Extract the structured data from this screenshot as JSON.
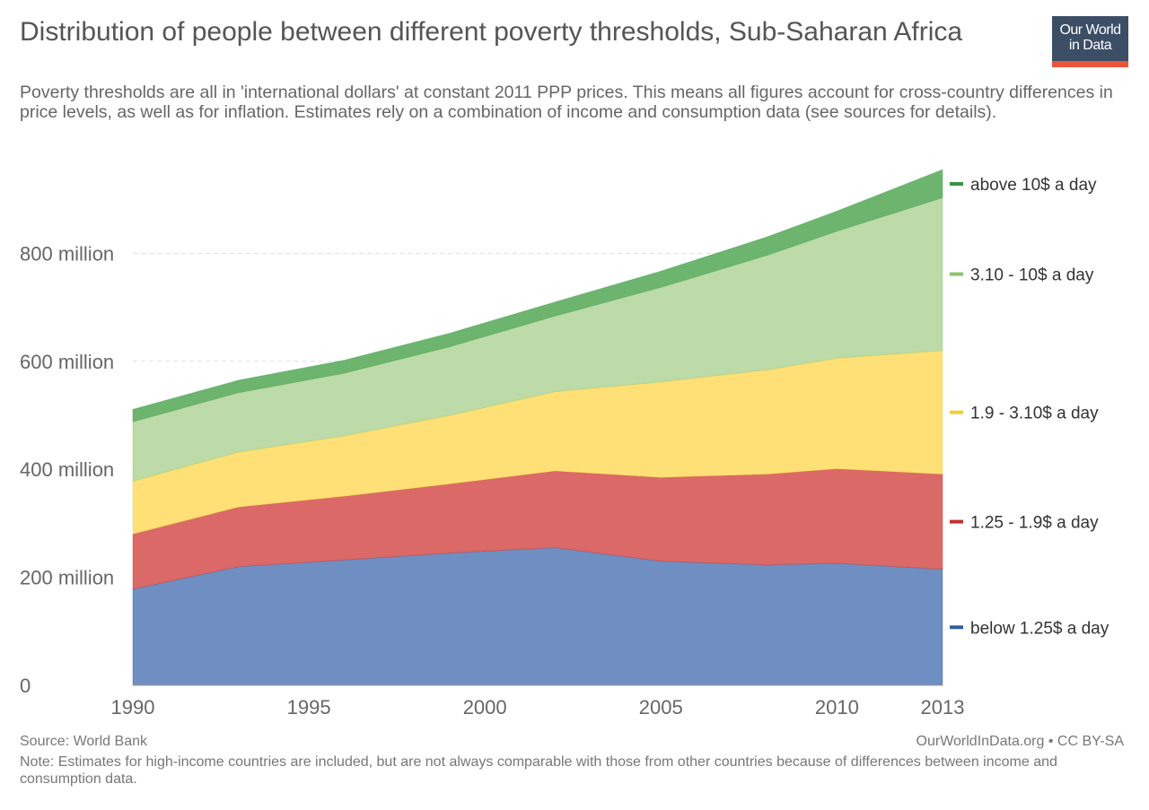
{
  "title": "Distribution of people between different poverty thresholds, Sub-Saharan Africa",
  "subtitle": "Poverty thresholds are all in 'international dollars' at constant 2011 PPP prices. This means all figures account for cross-country differences in price levels, as well as for inflation. Estimates rely on a combination of income and consumption data (see sources for details).",
  "logo": {
    "line1": "Our World",
    "line2": "in Data",
    "bg_color": "#3c4e66",
    "accent_color": "#e8553a"
  },
  "footer": {
    "source": "Source: World Bank",
    "credit": "OurWorldInData.org • CC BY-SA",
    "note": "Note: Estimates for high-income countries are included, but are not always comparable with those from other countries because of differences between income and consumption data."
  },
  "chart_data": {
    "type": "area",
    "stacked": true,
    "x": [
      1990,
      1993,
      1996,
      1999,
      2002,
      2005,
      2008,
      2010,
      2013
    ],
    "xticks": [
      1990,
      1995,
      2000,
      2005,
      2010,
      2013
    ],
    "ylim": [
      0,
      1000000000
    ],
    "yticks": [
      {
        "value": 0,
        "label": "0"
      },
      {
        "value": 200000000,
        "label": "200 million"
      },
      {
        "value": 400000000,
        "label": "400 million"
      },
      {
        "value": 600000000,
        "label": "600 million"
      },
      {
        "value": 800000000,
        "label": "800 million"
      }
    ],
    "grid": "horizontal dashed",
    "legend_position": "right",
    "series": [
      {
        "name": "below 1.25$ a day",
        "color": "#6f8fc3",
        "values": [
          178000000,
          220000000,
          232000000,
          245000000,
          255000000,
          230000000,
          223000000,
          226000000,
          215000000
        ]
      },
      {
        "name": "1.25 - 1.9$ a day",
        "color": "#db6967",
        "values": [
          102000000,
          110000000,
          118000000,
          128000000,
          142000000,
          155000000,
          168000000,
          175000000,
          176000000
        ]
      },
      {
        "name": "1.9 - 3.10$ a day",
        "color": "#ffe077",
        "values": [
          98000000,
          102000000,
          112000000,
          127000000,
          147000000,
          177000000,
          193000000,
          205000000,
          229000000
        ]
      },
      {
        "name": "3.10 - 10$ a day",
        "color": "#bcdba8",
        "values": [
          110000000,
          110000000,
          116000000,
          127000000,
          140000000,
          175000000,
          212000000,
          235000000,
          283000000
        ]
      },
      {
        "name": "above 10$ a day",
        "color": "#6db56f",
        "values": [
          23000000,
          23000000,
          24000000,
          25000000,
          26000000,
          30000000,
          34000000,
          37000000,
          52000000
        ]
      }
    ],
    "legend_swatch_colors": [
      "#2f5d9e",
      "#c0302e",
      "#f2cd38",
      "#8cc26b",
      "#3a9448"
    ]
  }
}
